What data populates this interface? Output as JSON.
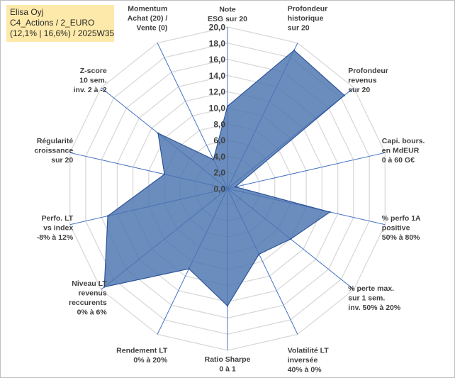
{
  "header": {
    "company": "Elisa Oyj",
    "portfolio": "C4_Actions / 2_EURO",
    "detail": "(12,1% | 16,6%) / 2025W35"
  },
  "colors": {
    "fill": "#4a74b0",
    "stroke": "#2f5597",
    "grid": "#d9d9d9",
    "spoke": "#4472c4",
    "badge": "#fde9a9"
  },
  "chart_data": {
    "type": "radar",
    "title": "",
    "rlim": [
      0,
      20
    ],
    "rticks": [
      "0,0",
      "2,0",
      "4,0",
      "6,0",
      "8,0",
      "10,0",
      "12,0",
      "14,0",
      "16,0",
      "18,0",
      "20,0"
    ],
    "grid": true,
    "legend": "none",
    "axes": [
      {
        "label": [
          "Note",
          "ESG sur 20"
        ],
        "value": 10.2
      },
      {
        "label": [
          "Profondeur",
          "historique",
          "sur 20"
        ],
        "value": 19.0
      },
      {
        "label": [
          "Profondeur",
          "revenus",
          "sur 20"
        ],
        "value": 18.5
      },
      {
        "label": [
          "Capi. bours.",
          "en MdEUR",
          "0 à 60 G€"
        ],
        "value": 1.0
      },
      {
        "label": [
          "% perfo 1A",
          "positive",
          "50% à 80%"
        ],
        "value": 13.0
      },
      {
        "label": [
          "% perte max.",
          "sur 1 sem.",
          "inv. 50% à 20%"
        ],
        "value": 10.0
      },
      {
        "label": [
          "Volatilité LT",
          "inversée",
          "40% à 0%"
        ],
        "value": 9.0
      },
      {
        "label": [
          "Ratio Sharpe",
          "0 à 1"
        ],
        "value": 14.5
      },
      {
        "label": [
          "Rendement LT",
          "0% à 20%"
        ],
        "value": 11.0
      },
      {
        "label": [
          "Niveau LT",
          "revenus",
          "reccurents",
          "0% à 6%"
        ],
        "value": 19.5
      },
      {
        "label": [
          "Perfo. LT",
          "vs index",
          "-8% à 12%"
        ],
        "value": 15.2
      },
      {
        "label": [
          "Régularité",
          "croissance",
          "sur 20"
        ],
        "value": 8.0
      },
      {
        "label": [
          "Z-score",
          "10 sem.",
          "inv. 2 à -2"
        ],
        "value": 11.0
      },
      {
        "label": [
          "Momentum",
          "Achat (20) /",
          "Vente (0)"
        ],
        "value": 4.0
      }
    ]
  }
}
